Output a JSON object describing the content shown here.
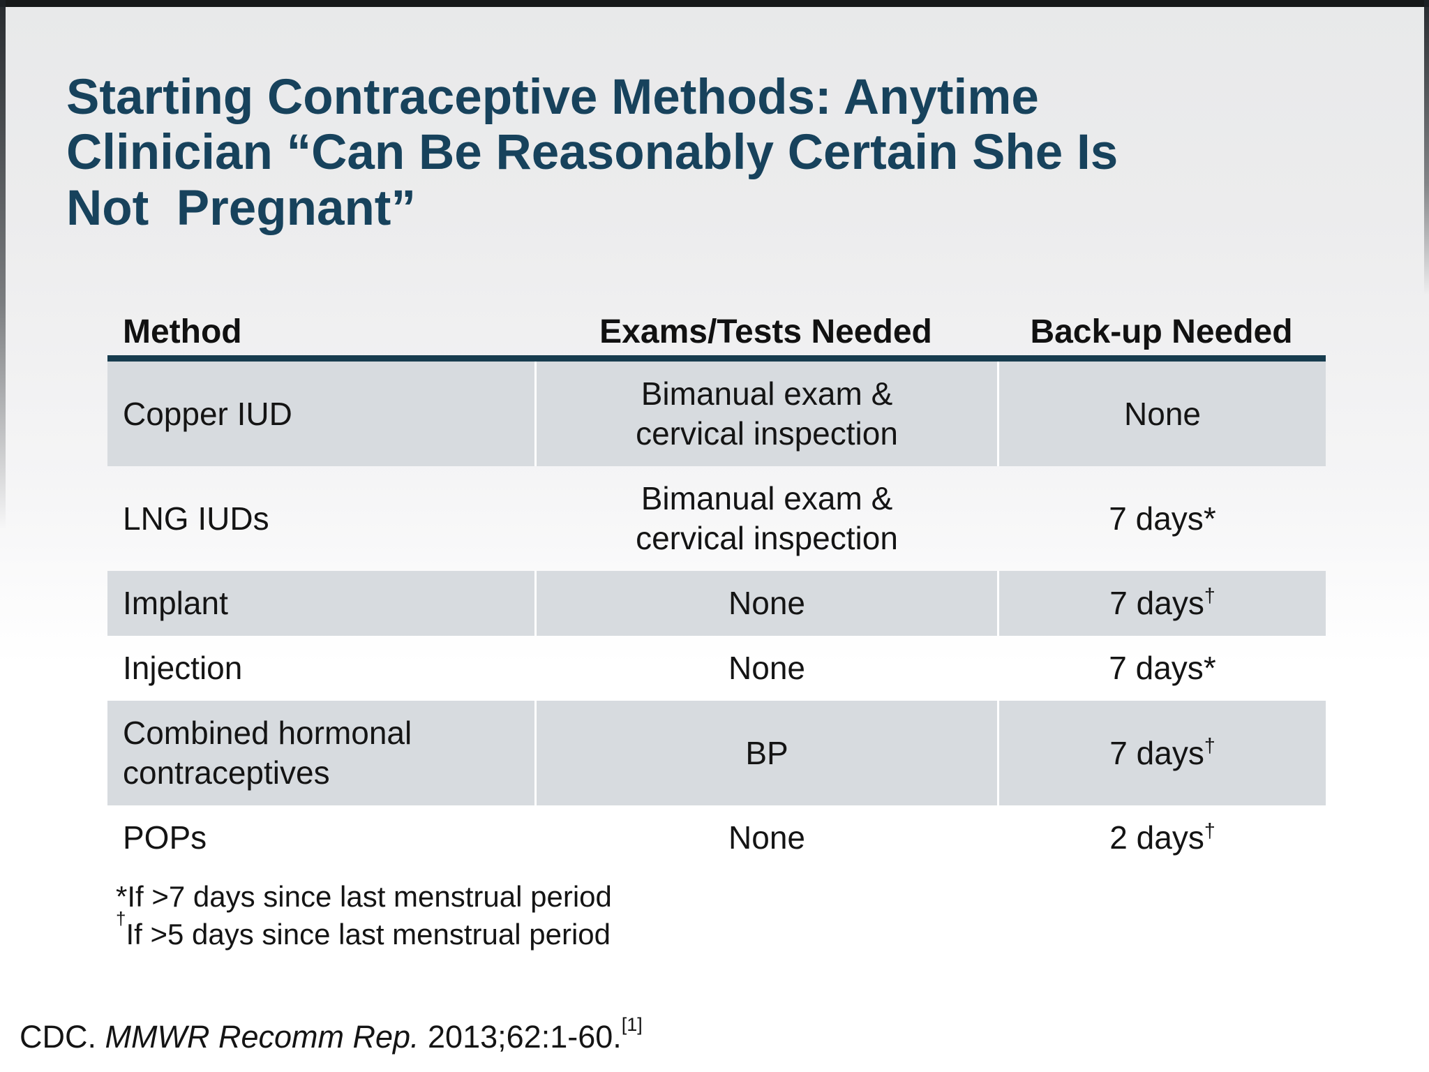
{
  "slide": {
    "title": "Starting Contraceptive Methods: Anytime\nClinician “Can Be Reasonably Certain She Is\nNot  Pregnant”",
    "title_color": "#17425c",
    "background_top_color": "#e9eaeb",
    "background_bottom_color": "#ffffff",
    "shaded_row_color": "#d7dbdf",
    "header_rule_color": "#173c4e"
  },
  "table": {
    "headers": [
      "Method",
      "Exams/Tests Needed",
      "Back-up Needed"
    ],
    "rows": [
      {
        "method": "Copper IUD",
        "exams": "Bimanual exam &\ncervical inspection",
        "backup": "None",
        "mark": "",
        "mark_superscript": false,
        "shaded": true
      },
      {
        "method": "LNG IUDs",
        "exams": "Bimanual exam &\ncervical inspection",
        "backup": "7 days",
        "mark": "*",
        "mark_superscript": false,
        "shaded": false
      },
      {
        "method": "Implant",
        "exams": "None",
        "backup": "7 days",
        "mark": "†",
        "mark_superscript": true,
        "shaded": true
      },
      {
        "method": "Injection",
        "exams": "None",
        "backup": "7 days",
        "mark": "*",
        "mark_superscript": false,
        "shaded": false
      },
      {
        "method": "Combined hormonal\ncontraceptives",
        "exams": "BP",
        "backup": "7 days",
        "mark": "†",
        "mark_superscript": true,
        "shaded": true
      },
      {
        "method": "POPs",
        "exams": "None",
        "backup": "2 days",
        "mark": "†",
        "mark_superscript": true,
        "shaded": false
      }
    ]
  },
  "footnotes": [
    {
      "mark": "*",
      "mark_superscript": false,
      "text": "If >7 days since last menstrual period"
    },
    {
      "mark": "†",
      "mark_superscript": true,
      "text": "If >5 days since last menstrual period"
    }
  ],
  "citation": {
    "prefix": "CDC. ",
    "journal": "MMWR Recomm Rep.",
    "rest": " 2013;62:1-60.",
    "reference": "[1]"
  }
}
